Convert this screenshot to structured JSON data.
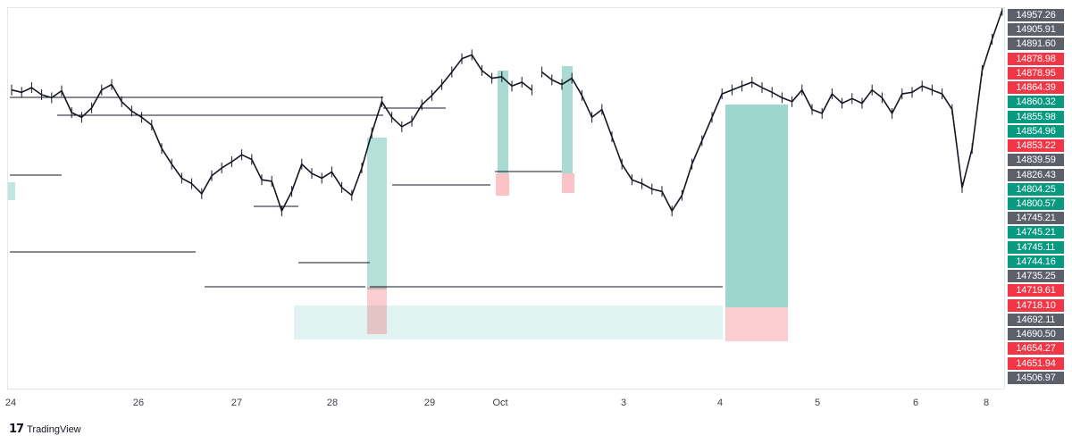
{
  "chart_data": {
    "type": "line",
    "style": "candlestick-like price series with zones",
    "x_labels": [
      "24",
      "26",
      "27",
      "28",
      "29",
      "Oct",
      "3",
      "4",
      "5",
      "6",
      "8"
    ],
    "ylim": [
      14470,
      14960
    ],
    "grid": false,
    "price_labels": [
      {
        "value": "14957.26",
        "color": "#5d606b"
      },
      {
        "value": "14905.91",
        "color": "#5d606b"
      },
      {
        "value": "14891.60",
        "color": "#5d606b"
      },
      {
        "value": "14878.98",
        "color": "#f23645"
      },
      {
        "value": "14878.95",
        "color": "#f23645"
      },
      {
        "value": "14864.39",
        "color": "#f23645"
      },
      {
        "value": "14860.32",
        "color": "#089981"
      },
      {
        "value": "14855.98",
        "color": "#089981"
      },
      {
        "value": "14854.96",
        "color": "#089981"
      },
      {
        "value": "14853.22",
        "color": "#f23645"
      },
      {
        "value": "14839.59",
        "color": "#5d606b"
      },
      {
        "value": "14826.43",
        "color": "#5d606b"
      },
      {
        "value": "14804.25",
        "color": "#089981"
      },
      {
        "value": "14800.57",
        "color": "#089981"
      },
      {
        "value": "14745.21",
        "color": "#5d606b"
      },
      {
        "value": "14745.21",
        "color": "#089981"
      },
      {
        "value": "14745.11",
        "color": "#089981"
      },
      {
        "value": "14744.16",
        "color": "#089981"
      },
      {
        "value": "14735.25",
        "color": "#5d606b"
      },
      {
        "value": "14719.61",
        "color": "#f23645"
      },
      {
        "value": "14718.10",
        "color": "#f23645"
      },
      {
        "value": "14692.11",
        "color": "#5d606b"
      },
      {
        "value": "14690.50",
        "color": "#5d606b"
      },
      {
        "value": "14654.27",
        "color": "#f23645"
      },
      {
        "value": "14651.94",
        "color": "#f23645"
      },
      {
        "value": "14506.97",
        "color": "#5d606b"
      }
    ],
    "series": [
      {
        "x": [
          0.0,
          0.2,
          0.4,
          0.6,
          0.8,
          1.0,
          1.2,
          1.4,
          1.6,
          1.8,
          2.0,
          2.2,
          2.4,
          2.6,
          2.8,
          3.0,
          3.2,
          3.4,
          3.6,
          3.8,
          4.0,
          4.2,
          4.4,
          4.6,
          4.8,
          5.0,
          5.2,
          5.4,
          5.6,
          5.8,
          6.0,
          6.2,
          6.4,
          6.6,
          6.8,
          7.0,
          7.2,
          7.4,
          7.6,
          7.8,
          8.0,
          8.2,
          8.4,
          8.6,
          8.8,
          9.0,
          9.2,
          9.4,
          9.6,
          9.8,
          10.0,
          10.2,
          10.4
        ],
        "y": [
          14855,
          14852,
          14858,
          14849,
          14845,
          14854,
          14826,
          14820,
          14832,
          14855,
          14862,
          14840,
          14828,
          14820,
          14810,
          14780,
          14760,
          14742,
          14735,
          14722,
          14745,
          14755,
          14763,
          14772,
          14766,
          14740,
          14738,
          14700,
          14725,
          14760,
          14748,
          14742,
          14750,
          14730,
          14720,
          14755,
          14800,
          14840,
          14820,
          14808,
          14815,
          14836,
          14848,
          14862,
          14878,
          14895,
          14900,
          14880,
          14870,
          14872,
          14860,
          14865,
          14855
        ]
      },
      {
        "x": [
          10.6,
          10.8,
          11.0,
          11.2,
          11.4,
          11.6,
          11.8,
          12.0,
          12.2,
          12.4,
          12.6,
          12.8,
          13.0,
          13.2,
          13.4,
          13.6,
          13.8,
          14.0,
          14.2,
          14.4,
          14.6,
          14.8,
          15.0,
          15.2,
          15.4,
          15.6,
          15.8,
          16.0,
          16.2,
          16.4,
          16.6,
          16.8,
          17.0,
          17.2,
          17.4,
          17.6,
          17.8,
          18.0,
          18.2,
          18.4,
          18.6,
          18.8,
          19.0,
          19.2,
          19.4,
          19.6,
          19.8
        ],
        "y": [
          14878,
          14868,
          14862,
          14870,
          14848,
          14820,
          14830,
          14795,
          14760,
          14740,
          14735,
          14728,
          14725,
          14700,
          14720,
          14760,
          14790,
          14820,
          14850,
          14855,
          14860,
          14865,
          14858,
          14852,
          14845,
          14840,
          14855,
          14830,
          14825,
          14850,
          14838,
          14844,
          14838,
          14855,
          14845,
          14825,
          14850,
          14852,
          14860,
          14855,
          14850,
          14830,
          14730,
          14780,
          14880,
          14920,
          14957
        ]
      }
    ]
  },
  "chart": {
    "zone_color_green": "#089981",
    "zone_color_red": "#f23645",
    "line_color": "#131722"
  },
  "brand": {
    "logo_mark": "17",
    "name": "TradingView"
  }
}
